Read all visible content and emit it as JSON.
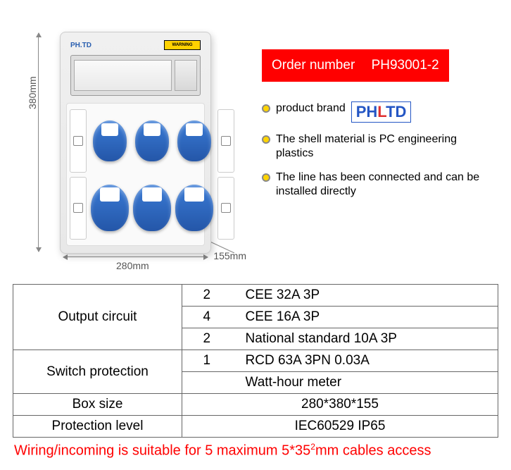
{
  "dimensions": {
    "height": "380mm",
    "width": "280mm",
    "depth": "155mm"
  },
  "box_brand": "PH.TD",
  "warning": "WARNING",
  "order": {
    "label": "Order number",
    "value": "PH93001-2"
  },
  "brand_label": "product brand",
  "brand_logo": {
    "p": "PH",
    "l": "L",
    "td": "TD"
  },
  "bullets": [
    "The shell material is PC engineering plastics",
    "The line has been connected and can be installed directly"
  ],
  "table": {
    "output_label": "Output circuit",
    "output_rows": [
      {
        "qty": "2",
        "desc": "CEE 32A 3P"
      },
      {
        "qty": "4",
        "desc": "CEE 16A 3P"
      },
      {
        "qty": "2",
        "desc": "National standard 10A 3P"
      }
    ],
    "switch_label": "Switch protection",
    "switch_rows": [
      {
        "qty": "1",
        "desc": "RCD 63A 3PN 0.03A"
      },
      {
        "qty": "",
        "desc": "Watt-hour meter"
      }
    ],
    "boxsize_label": "Box size",
    "boxsize_value": "280*380*155",
    "protection_label": "Protection level",
    "protection_value": "IEC60529 IP65"
  },
  "footnote_a": "Wiring/incoming is suitable for 5 maximum 5*35",
  "footnote_b": "mm cables access",
  "colors": {
    "order_bg": "#ff0000",
    "bullet": "#ffd400",
    "plug": "#2456a8",
    "brand": "#2456c4",
    "footnote": "#ff0000"
  }
}
